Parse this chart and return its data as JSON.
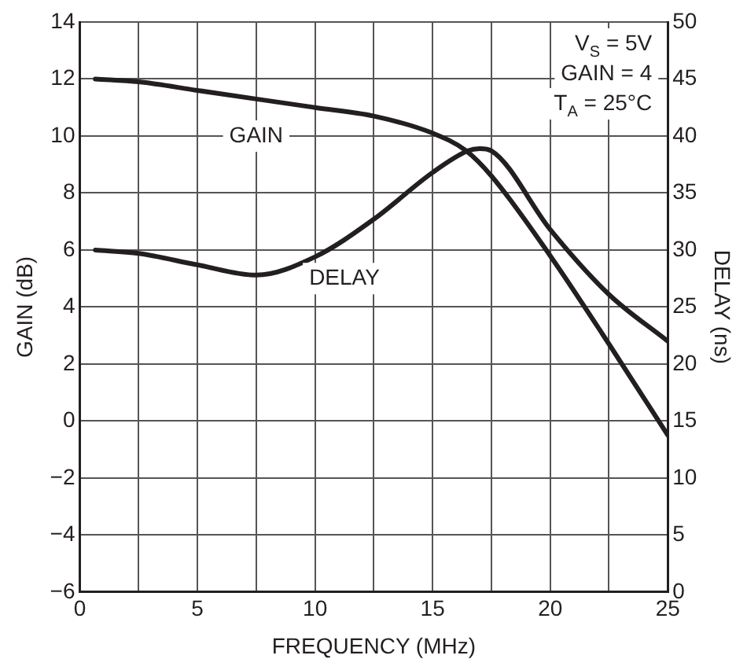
{
  "chart_data": {
    "type": "line",
    "xlabel": "FREQUENCY (MHz)",
    "ylabel": "GAIN (dB)",
    "y2label": "DELAY (ns)",
    "xlim": [
      0,
      25
    ],
    "xticks": [
      0,
      {
        "value": 2.5,
        "label": null
      },
      5,
      {
        "value": 7.5,
        "label": null
      },
      10,
      {
        "value": 12.5,
        "label": null
      },
      15,
      {
        "value": 17.5,
        "label": null
      },
      20,
      {
        "value": 22.5,
        "label": null
      },
      25
    ],
    "ylim": [
      -6,
      14
    ],
    "yticks": [
      {
        "value": -6,
        "label": "−6"
      },
      {
        "value": -4,
        "label": "−4"
      },
      {
        "value": -2,
        "label": "−2"
      },
      0,
      2,
      4,
      6,
      8,
      10,
      12,
      14
    ],
    "y2lim": [
      0,
      50
    ],
    "y2ticks": [
      0,
      5,
      10,
      15,
      20,
      25,
      30,
      35,
      40,
      45,
      50
    ],
    "grid": true,
    "legend": false,
    "marker": "none",
    "line_style": "solid",
    "series": [
      {
        "name": "GAIN",
        "color": "#231f20",
        "x": [
          0.66,
          2.5,
          5,
          7.5,
          10,
          12.5,
          15,
          16.4,
          17.5,
          20,
          22.5,
          25
        ],
        "values": [
          12,
          11.9,
          11.6,
          11.3,
          11,
          10.7,
          10.1,
          9.5,
          8.6,
          5.8,
          2.7,
          -0.5
        ]
      },
      {
        "name": "DELAY",
        "color": "#231f20",
        "axis": "y2",
        "x": [
          0.66,
          2.5,
          5,
          7.5,
          10,
          12.5,
          15,
          16.5,
          17,
          17.5,
          20,
          22.5,
          25
        ],
        "values": [
          30,
          29.7,
          28.7,
          27.8,
          29.4,
          32.7,
          36.8,
          38.7,
          38.9,
          38.7,
          31.8,
          26.1,
          22
        ]
      }
    ],
    "annotations": [
      "V$_{S}$ = 5V",
      "GAIN = 4",
      "T$_{A}$ = 25°C"
    ]
  }
}
